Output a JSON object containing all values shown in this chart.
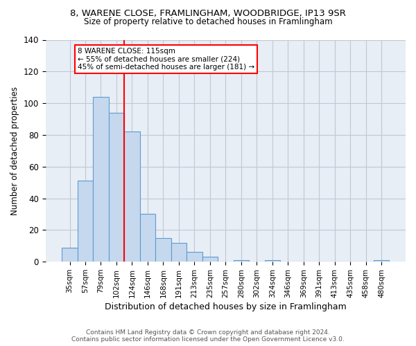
{
  "title1": "8, WARENE CLOSE, FRAMLINGHAM, WOODBRIDGE, IP13 9SR",
  "title2": "Size of property relative to detached houses in Framlingham",
  "xlabel": "Distribution of detached houses by size in Framlingham",
  "ylabel": "Number of detached properties",
  "bin_labels": [
    "35sqm",
    "57sqm",
    "79sqm",
    "102sqm",
    "124sqm",
    "146sqm",
    "168sqm",
    "191sqm",
    "213sqm",
    "235sqm",
    "257sqm",
    "280sqm",
    "302sqm",
    "324sqm",
    "346sqm",
    "369sqm",
    "391sqm",
    "413sqm",
    "435sqm",
    "458sqm",
    "480sqm"
  ],
  "bar_heights": [
    9,
    51,
    104,
    94,
    82,
    30,
    15,
    12,
    6,
    3,
    0,
    1,
    0,
    1,
    0,
    0,
    0,
    0,
    0,
    0,
    1
  ],
  "bar_color": "#c5d8ed",
  "bar_edge_color": "#5b9bd5",
  "highlight_line_color": "red",
  "annotation_title": "8 WARENE CLOSE: 115sqm",
  "annotation_line1": "← 55% of detached houses are smaller (224)",
  "annotation_line2": "45% of semi-detached houses are larger (181) →",
  "annotation_box_color": "white",
  "annotation_box_edge": "red",
  "bg_color": "#e8eef5",
  "grid_color": "#c0c8d4",
  "ylim": [
    0,
    140
  ],
  "yticks": [
    0,
    20,
    40,
    60,
    80,
    100,
    120,
    140
  ],
  "footer1": "Contains HM Land Registry data © Crown copyright and database right 2024.",
  "footer2": "Contains public sector information licensed under the Open Government Licence v3.0."
}
